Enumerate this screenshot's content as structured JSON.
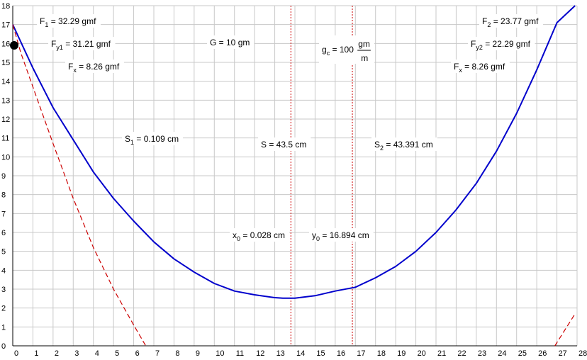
{
  "chart_data": {
    "type": "line",
    "title": "",
    "xlabel": "",
    "ylabel": "",
    "xlim": [
      0,
      28
    ],
    "ylim": [
      0,
      18
    ],
    "x_ticks": [
      0,
      1,
      2,
      3,
      4,
      5,
      6,
      7,
      8,
      9,
      10,
      11,
      12,
      13,
      14,
      15,
      16,
      17,
      18,
      19,
      20,
      21,
      22,
      23,
      24,
      25,
      26,
      27,
      28
    ],
    "y_ticks": [
      0,
      1,
      2,
      3,
      4,
      5,
      6,
      7,
      8,
      9,
      10,
      11,
      12,
      13,
      14,
      15,
      16,
      17,
      18
    ],
    "grid": true,
    "series": [
      {
        "color": "#0000cc",
        "style": "solid",
        "x": [
          0,
          1,
          2,
          3,
          4,
          5,
          6,
          7,
          8,
          9,
          10,
          11,
          12,
          13,
          13.4,
          14,
          15,
          16,
          17,
          18,
          19,
          20,
          21,
          22,
          23,
          24,
          25,
          26,
          27,
          27.9
        ],
        "y": [
          17.0,
          14.7,
          12.6,
          10.9,
          9.2,
          7.8,
          6.6,
          5.5,
          4.6,
          3.9,
          3.3,
          2.9,
          2.7,
          2.55,
          2.52,
          2.52,
          2.65,
          2.9,
          3.1,
          3.6,
          4.2,
          5.0,
          6.0,
          7.2,
          8.6,
          10.3,
          12.3,
          14.6,
          17.1,
          18.0
        ]
      },
      {
        "color": "#cc0000",
        "style": "dashed",
        "x": [
          0,
          0.4,
          1,
          2,
          3,
          4,
          5,
          6,
          6.6
        ],
        "y": [
          17.0,
          15.5,
          13.7,
          10.7,
          7.8,
          5.2,
          3.0,
          1.1,
          0
        ]
      },
      {
        "color": "#cc0000",
        "style": "dashed",
        "x": [
          26.9,
          27.9
        ],
        "y": [
          0,
          1.7
        ]
      }
    ],
    "marker_point": {
      "x": 0,
      "y": 15.9,
      "color": "#000000"
    },
    "vertical_lines": [
      {
        "x": 13.8,
        "color": "#cc0000",
        "style": "dotted"
      },
      {
        "x": 16.85,
        "color": "#cc0000",
        "style": "dotted"
      }
    ],
    "annotations": [
      {
        "id": "F1",
        "main": "F",
        "sub": "1",
        "rest": " = 32.29 gmf"
      },
      {
        "id": "Fy1",
        "main": "F",
        "sub": "y1",
        "rest": " = 31.21 gmf"
      },
      {
        "id": "Fx-left",
        "main": "F",
        "sub": "x",
        "rest": " = 8.26 gmf"
      },
      {
        "id": "G",
        "main": "G = 10 gm",
        "sub": "",
        "rest": ""
      },
      {
        "id": "gc",
        "main": "g",
        "sub": "c",
        "rest": " = 100",
        "frac_num": "gm",
        "frac_den": "m"
      },
      {
        "id": "F2",
        "main": "F",
        "sub": "2",
        "rest": " = 23.77 gmf"
      },
      {
        "id": "Fy2",
        "main": "F",
        "sub": "y2",
        "rest": " = 22.29 gmf"
      },
      {
        "id": "Fx-right",
        "main": "F",
        "sub": "x",
        "rest": " = 8.26 gmf"
      },
      {
        "id": "S1",
        "main": "S",
        "sub": "1",
        "rest": " = 0.109 cm"
      },
      {
        "id": "S",
        "main": "S = 43.5 cm",
        "sub": "",
        "rest": ""
      },
      {
        "id": "S2",
        "main": "S",
        "sub": "2",
        "rest": " = 43.391 cm"
      },
      {
        "id": "x0",
        "main": "x",
        "sub": "0",
        "rest": " = 0.028 cm"
      },
      {
        "id": "y0",
        "main": "y",
        "sub": "0",
        "rest": " = 16.894 cm"
      }
    ]
  }
}
